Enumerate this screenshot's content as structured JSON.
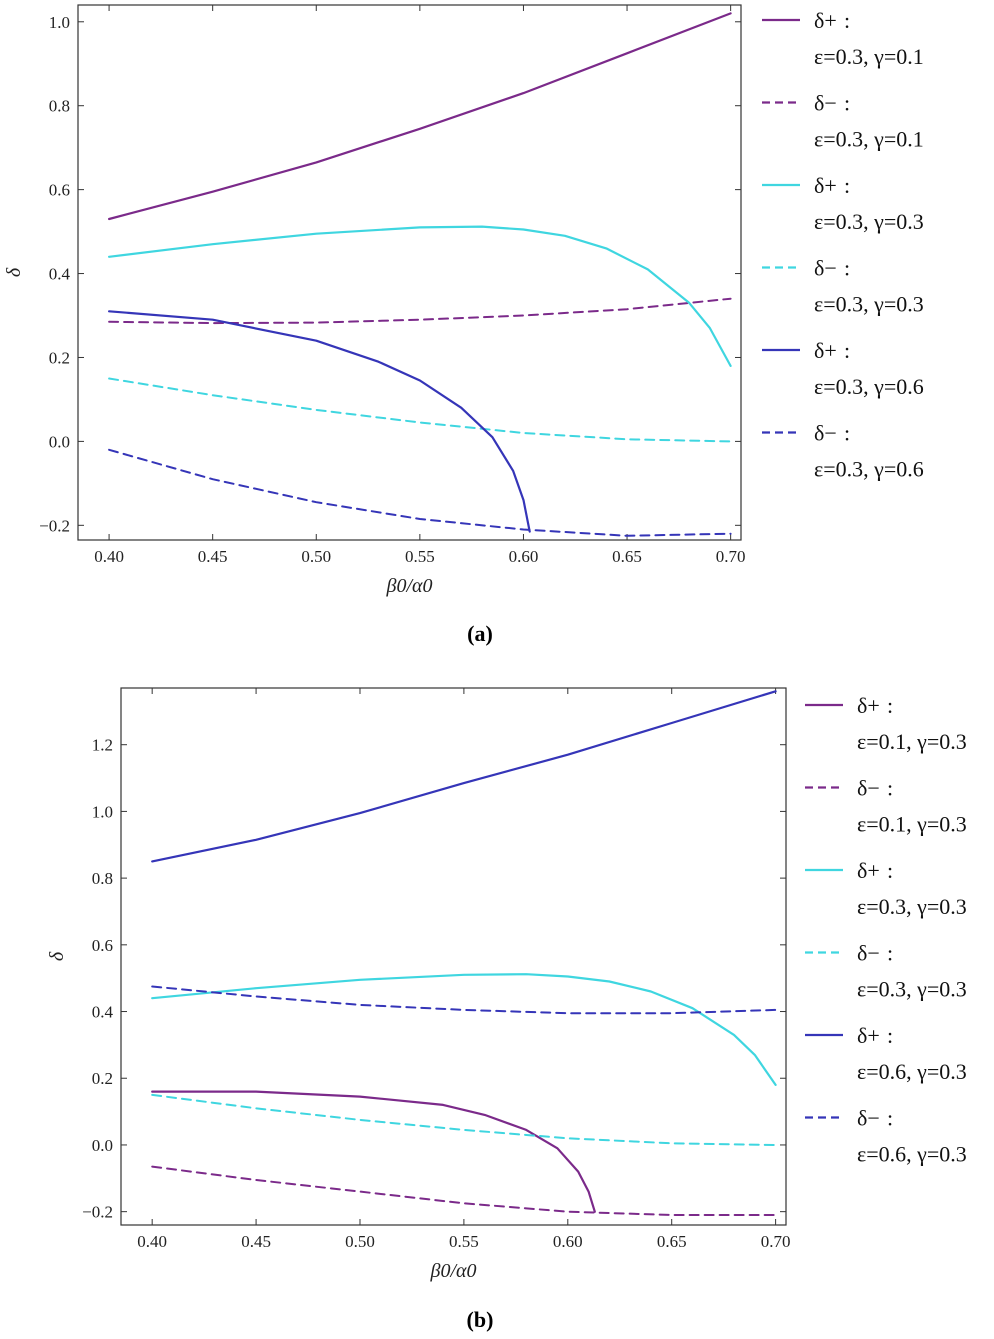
{
  "chart_data": [
    {
      "type": "line",
      "panel_label": "(a)",
      "xlabel": "β0/α0",
      "ylabel": "δ",
      "xlim": [
        0.385,
        0.705
      ],
      "ylim": [
        -0.235,
        1.04
      ],
      "xticks": [
        "0.40",
        "0.45",
        "0.50",
        "0.55",
        "0.60",
        "0.65",
        "0.70"
      ],
      "yticks": [
        "−0.2",
        "0.0",
        "0.2",
        "0.4",
        "0.6",
        "0.8",
        "1.0"
      ],
      "grid": false,
      "legend_position": "right",
      "series": [
        {
          "name": "δ+",
          "legend_params": "ε=0.3, γ=0.1",
          "color": "#7b2a8a",
          "dash": "solid",
          "x": [
            0.4,
            0.45,
            0.5,
            0.55,
            0.6,
            0.65,
            0.7
          ],
          "y": [
            0.53,
            0.595,
            0.665,
            0.745,
            0.83,
            0.925,
            1.02
          ]
        },
        {
          "name": "δ−",
          "legend_params": "ε=0.3, γ=0.1",
          "color": "#7b2a8a",
          "dash": "dashed",
          "x": [
            0.4,
            0.45,
            0.5,
            0.55,
            0.6,
            0.65,
            0.7
          ],
          "y": [
            0.285,
            0.282,
            0.283,
            0.29,
            0.3,
            0.315,
            0.34
          ]
        },
        {
          "name": "δ+",
          "legend_params": "ε=0.3, γ=0.3",
          "color": "#3fd6e0",
          "dash": "solid",
          "x": [
            0.4,
            0.45,
            0.5,
            0.55,
            0.58,
            0.6,
            0.62,
            0.64,
            0.66,
            0.68,
            0.69,
            0.7
          ],
          "y": [
            0.44,
            0.47,
            0.495,
            0.51,
            0.512,
            0.505,
            0.49,
            0.46,
            0.41,
            0.33,
            0.27,
            0.18
          ]
        },
        {
          "name": "δ−",
          "legend_params": "ε=0.3, γ=0.3",
          "color": "#3fd6e0",
          "dash": "dashed",
          "x": [
            0.4,
            0.45,
            0.5,
            0.55,
            0.6,
            0.65,
            0.7
          ],
          "y": [
            0.15,
            0.11,
            0.075,
            0.045,
            0.02,
            0.005,
            0.0
          ]
        },
        {
          "name": "δ+",
          "legend_params": "ε=0.3, γ=0.6",
          "color": "#3535b8",
          "dash": "solid",
          "x": [
            0.4,
            0.45,
            0.5,
            0.53,
            0.55,
            0.57,
            0.585,
            0.595,
            0.6,
            0.603
          ],
          "y": [
            0.31,
            0.29,
            0.24,
            0.19,
            0.145,
            0.08,
            0.01,
            -0.07,
            -0.14,
            -0.215
          ]
        },
        {
          "name": "δ−",
          "legend_params": "ε=0.3, γ=0.6",
          "color": "#3535b8",
          "dash": "dashed",
          "x": [
            0.4,
            0.45,
            0.5,
            0.55,
            0.6,
            0.65,
            0.7
          ],
          "y": [
            -0.02,
            -0.09,
            -0.145,
            -0.185,
            -0.21,
            -0.225,
            -0.22
          ]
        }
      ]
    },
    {
      "type": "line",
      "panel_label": "(b)",
      "xlabel": "β0/α0",
      "ylabel": "δ",
      "xlim": [
        0.385,
        0.705
      ],
      "ylim": [
        -0.24,
        1.37
      ],
      "xticks": [
        "0.40",
        "0.45",
        "0.50",
        "0.55",
        "0.60",
        "0.65",
        "0.70"
      ],
      "yticks": [
        "−0.2",
        "0.0",
        "0.2",
        "0.4",
        "0.6",
        "0.8",
        "1.0",
        "1.2"
      ],
      "grid": false,
      "legend_position": "right",
      "series": [
        {
          "name": "δ+",
          "legend_params": "ε=0.1, γ=0.3",
          "color": "#7b2a8a",
          "dash": "solid",
          "x": [
            0.4,
            0.45,
            0.5,
            0.54,
            0.56,
            0.58,
            0.595,
            0.605,
            0.61,
            0.613
          ],
          "y": [
            0.16,
            0.16,
            0.145,
            0.12,
            0.09,
            0.045,
            -0.01,
            -0.08,
            -0.14,
            -0.2
          ]
        },
        {
          "name": "δ−",
          "legend_params": "ε=0.1, γ=0.3",
          "color": "#7b2a8a",
          "dash": "dashed",
          "x": [
            0.4,
            0.45,
            0.5,
            0.55,
            0.6,
            0.65,
            0.7
          ],
          "y": [
            -0.065,
            -0.105,
            -0.14,
            -0.175,
            -0.2,
            -0.21,
            -0.21
          ]
        },
        {
          "name": "δ+",
          "legend_params": "ε=0.3, γ=0.3",
          "color": "#3fd6e0",
          "dash": "solid",
          "x": [
            0.4,
            0.45,
            0.5,
            0.55,
            0.58,
            0.6,
            0.62,
            0.64,
            0.66,
            0.68,
            0.69,
            0.7
          ],
          "y": [
            0.44,
            0.47,
            0.495,
            0.51,
            0.512,
            0.505,
            0.49,
            0.46,
            0.41,
            0.33,
            0.27,
            0.18
          ]
        },
        {
          "name": "δ−",
          "legend_params": "ε=0.3, γ=0.3",
          "color": "#3fd6e0",
          "dash": "dashed",
          "x": [
            0.4,
            0.45,
            0.5,
            0.55,
            0.6,
            0.65,
            0.7
          ],
          "y": [
            0.15,
            0.11,
            0.075,
            0.045,
            0.02,
            0.005,
            0.0
          ]
        },
        {
          "name": "δ+",
          "legend_params": "ε=0.6, γ=0.3",
          "color": "#3535b8",
          "dash": "solid",
          "x": [
            0.4,
            0.45,
            0.5,
            0.55,
            0.6,
            0.65,
            0.7
          ],
          "y": [
            0.85,
            0.915,
            0.995,
            1.085,
            1.17,
            1.265,
            1.36
          ]
        },
        {
          "name": "δ−",
          "legend_params": "ε=0.6, γ=0.3",
          "color": "#3535b8",
          "dash": "dashed",
          "x": [
            0.4,
            0.45,
            0.5,
            0.55,
            0.6,
            0.65,
            0.7
          ],
          "y": [
            0.475,
            0.445,
            0.42,
            0.405,
            0.395,
            0.395,
            0.405
          ]
        }
      ]
    }
  ]
}
